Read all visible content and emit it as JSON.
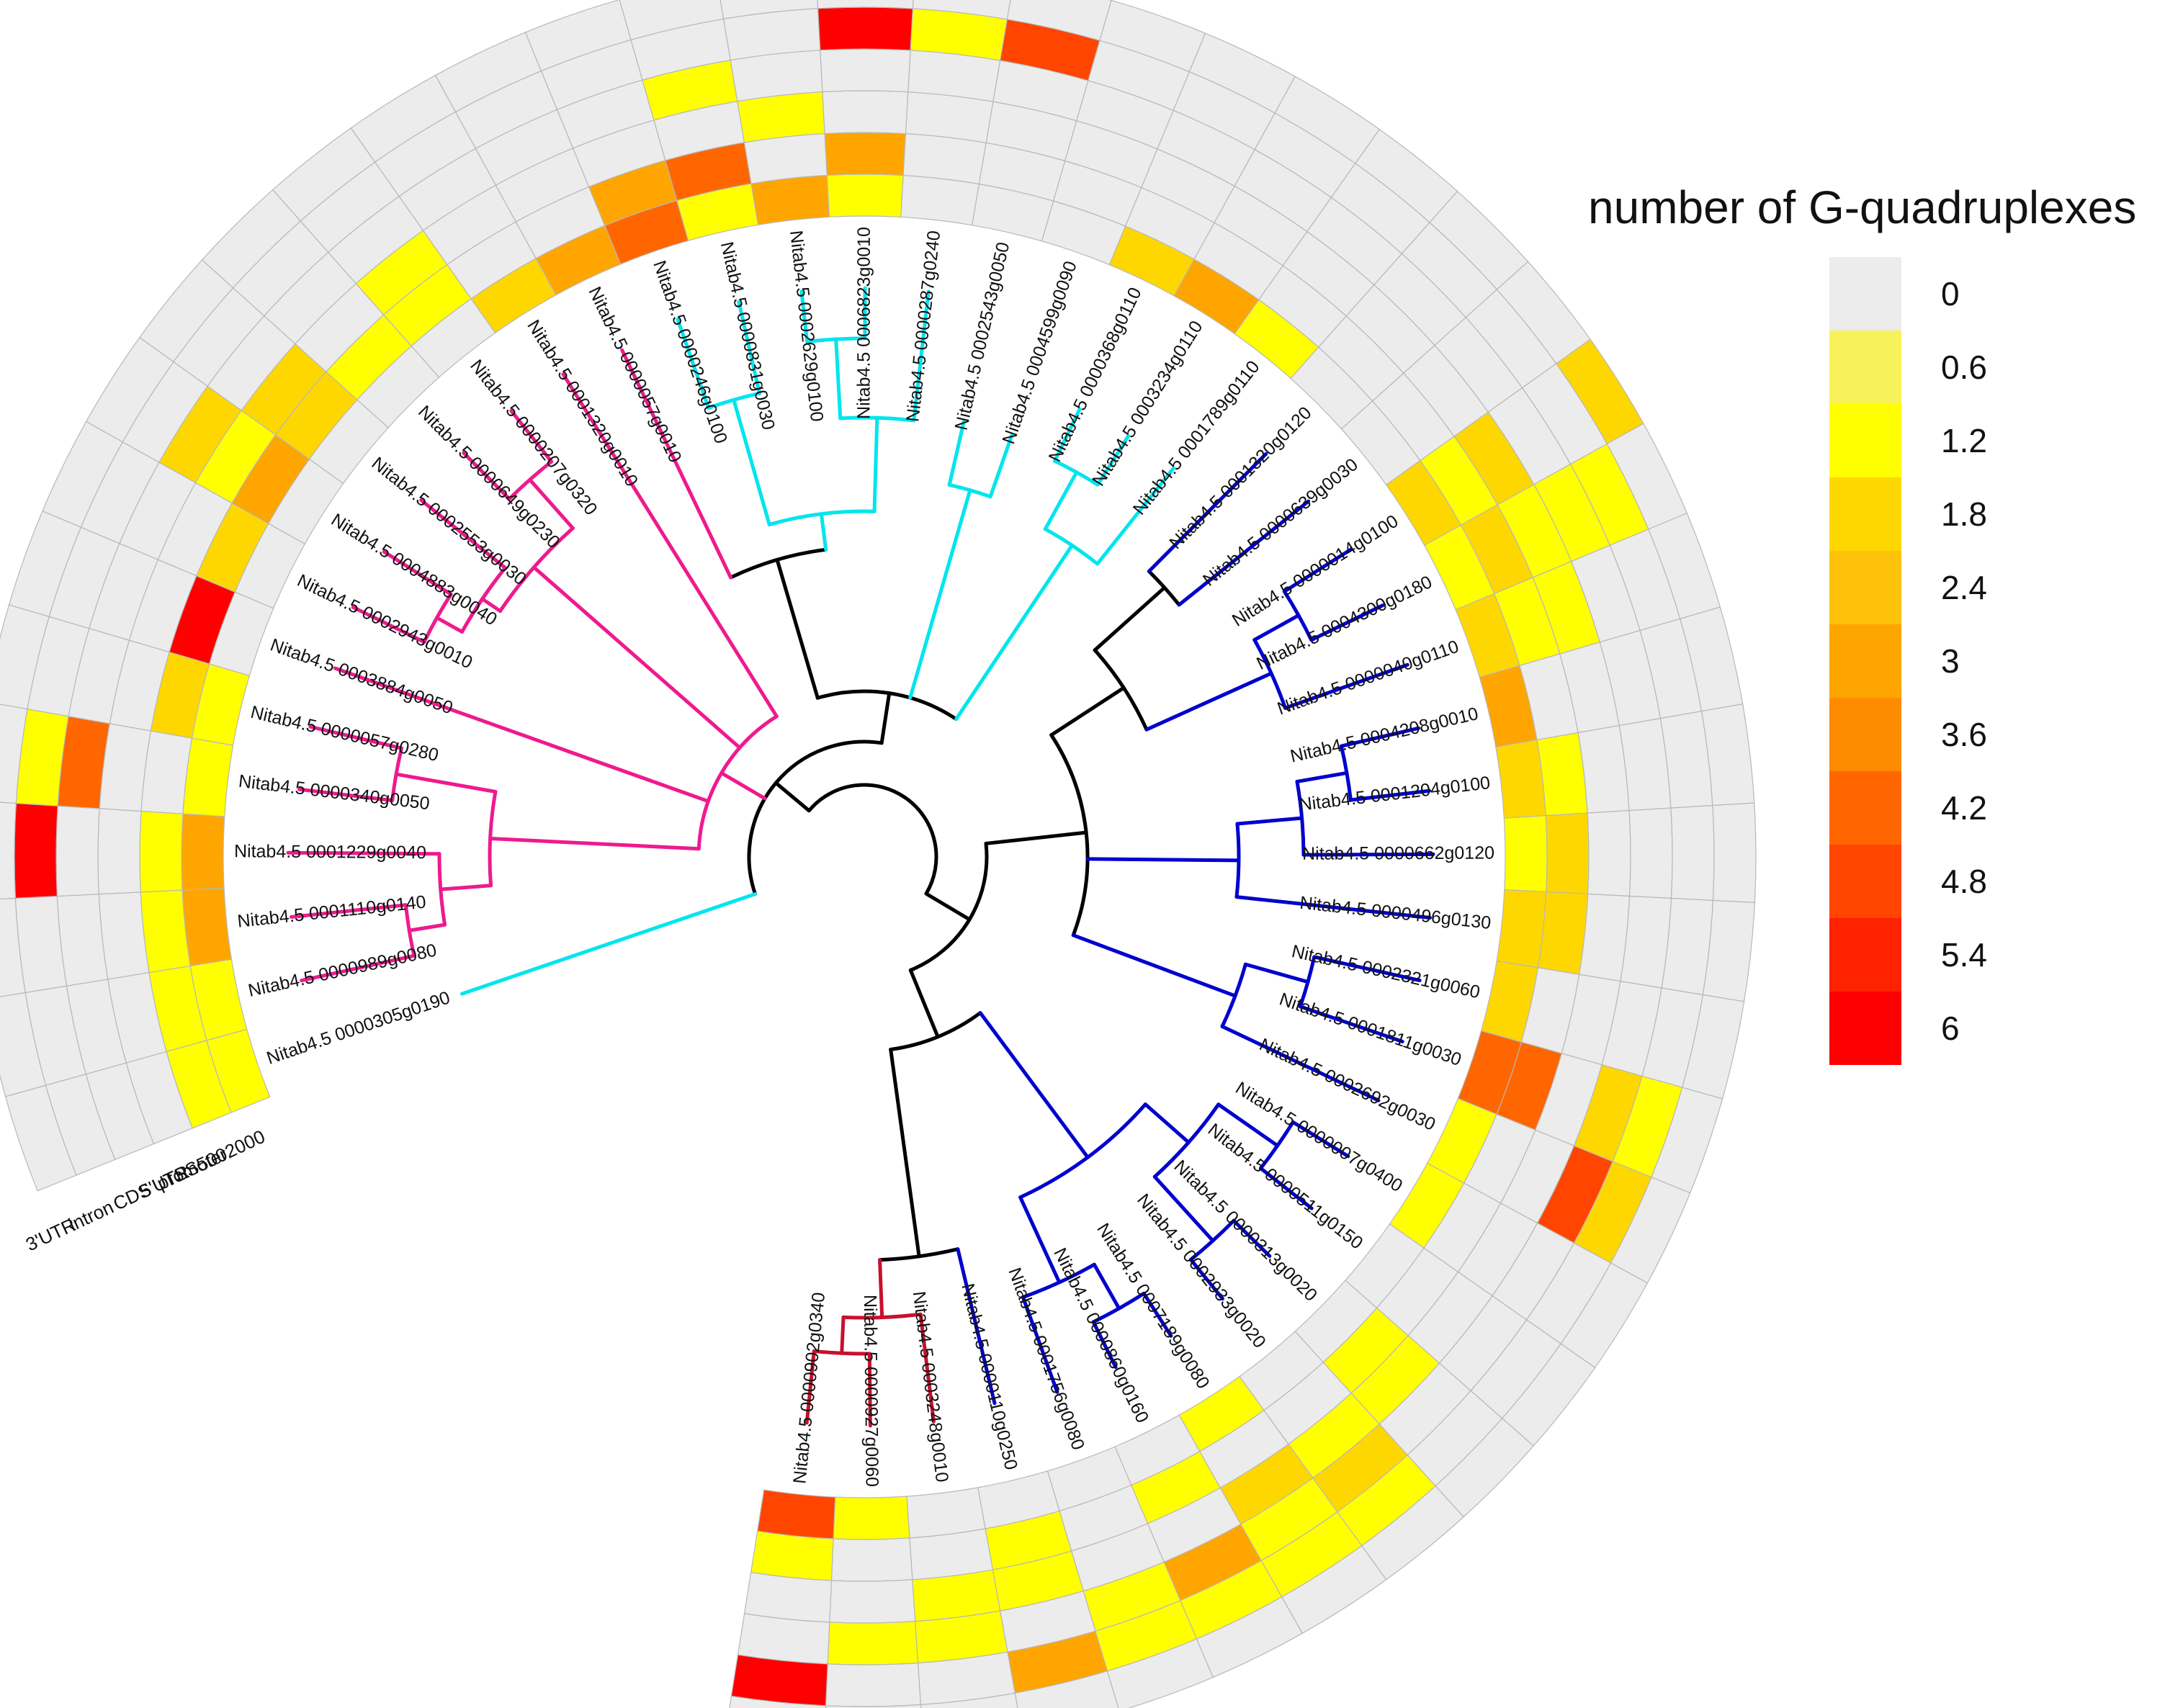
{
  "chart_data": {
    "type": "heatmap",
    "subtype": "circular phylogenetic tree with ring heatmap",
    "legend": {
      "title": "number of G-quadruplexes",
      "ticks": [
        "0",
        "0.6",
        "1.2",
        "1.8",
        "2.4",
        "3",
        "3.6",
        "4.2",
        "4.8",
        "5.4",
        "6"
      ],
      "colors": [
        "#ececec",
        "#f7f25a",
        "#ffff00",
        "#ffd700",
        "#ffc20a",
        "#ffa500",
        "#ff8c00",
        "#ff6600",
        "#ff4500",
        "#ff2200",
        "#ff0000"
      ],
      "range": [
        0,
        6
      ]
    },
    "tracks": [
      "3'UTR",
      "intron",
      "CDS",
      "5'UTR",
      "TSS500",
      "promoter2000"
    ],
    "clade_colors": {
      "cyan": "#00e5ee",
      "magenta": "#ee1a8e",
      "crimson": "#c8102e",
      "blue": "#0000cd",
      "black": "#000000"
    },
    "leaves": [
      {
        "id": "Nitab4.5 0000305g0190",
        "clade": "cyan",
        "values": [
          0,
          0,
          0,
          0,
          1,
          1
        ]
      },
      {
        "id": "Nitab4.5 0000989g0080",
        "clade": "magenta",
        "values": [
          0,
          0,
          0,
          0,
          1,
          1
        ]
      },
      {
        "id": "Nitab4.5 0001110g0140",
        "clade": "magenta",
        "values": [
          0,
          0,
          0,
          0,
          1,
          3
        ]
      },
      {
        "id": "Nitab4.5 0001229g0040",
        "clade": "magenta",
        "values": [
          0,
          6,
          0,
          0,
          1,
          3
        ]
      },
      {
        "id": "Nitab4.5 0000340g0050",
        "clade": "magenta",
        "values": [
          0,
          1,
          4,
          0,
          0,
          1
        ]
      },
      {
        "id": "Nitab4.5 0000057g0280",
        "clade": "magenta",
        "values": [
          0,
          0,
          0,
          0,
          2,
          1
        ]
      },
      {
        "id": "Nitab4.5 0003884g0050",
        "clade": "magenta",
        "values": [
          0,
          0,
          0,
          0,
          6,
          0
        ]
      },
      {
        "id": "Nitab4.5 0002943g0010",
        "clade": "magenta",
        "values": [
          0,
          0,
          0,
          0,
          2,
          0
        ]
      },
      {
        "id": "Nitab4.5 0004883g0040",
        "clade": "magenta",
        "values": [
          0,
          0,
          2,
          1,
          3,
          0
        ]
      },
      {
        "id": "Nitab4.5 0002553g0030",
        "clade": "magenta",
        "values": [
          0,
          0,
          0,
          2,
          2,
          0
        ]
      },
      {
        "id": "Nitab4.5 0000649g0230",
        "clade": "magenta",
        "values": [
          0,
          0,
          0,
          0,
          1,
          0
        ]
      },
      {
        "id": "Nitab4.5 0000207g0320",
        "clade": "magenta",
        "values": [
          0,
          0,
          0,
          1,
          1,
          0
        ]
      },
      {
        "id": "Nitab4.5 0001320g0010",
        "clade": "magenta",
        "values": [
          0,
          0,
          0,
          0,
          0,
          2
        ]
      },
      {
        "id": "Nitab4.5 0000057g0010",
        "clade": "magenta",
        "values": [
          0,
          0,
          0,
          0,
          0,
          3
        ]
      },
      {
        "id": "Nitab4.5 0000246g0100",
        "clade": "cyan",
        "values": [
          0,
          0,
          0,
          0,
          3,
          4
        ]
      },
      {
        "id": "Nitab4.5 0000831g0030",
        "clade": "cyan",
        "values": [
          0,
          0,
          1,
          0,
          4,
          1
        ]
      },
      {
        "id": "Nitab4.5 0002629g0100",
        "clade": "cyan",
        "values": [
          0,
          0,
          0,
          1,
          0,
          3
        ]
      },
      {
        "id": "Nitab4.5 0006823g0010",
        "clade": "cyan",
        "values": [
          0,
          6,
          0,
          0,
          3,
          1
        ]
      },
      {
        "id": "Nitab4.5 0000287g0240",
        "clade": "cyan",
        "values": [
          0,
          1,
          0,
          0,
          0,
          0
        ]
      },
      {
        "id": "Nitab4.5 0002543g0050",
        "clade": "cyan",
        "values": [
          0,
          5,
          0,
          0,
          0,
          0
        ]
      },
      {
        "id": "Nitab4.5 0004599g0090",
        "clade": "cyan",
        "values": [
          0,
          0,
          0,
          0,
          0,
          0
        ]
      },
      {
        "id": "Nitab4.5 0000368g0110",
        "clade": "cyan",
        "values": [
          0,
          0,
          0,
          0,
          0,
          2
        ]
      },
      {
        "id": "Nitab4.5 0003234g0110",
        "clade": "cyan",
        "values": [
          0,
          0,
          0,
          0,
          0,
          3
        ]
      },
      {
        "id": "Nitab4.5 0001789g0110",
        "clade": "cyan",
        "values": [
          0,
          0,
          0,
          0,
          0,
          1
        ]
      },
      {
        "id": "Nitab4.5 0001320g0120",
        "clade": "blue",
        "values": [
          0,
          0,
          0,
          0,
          0,
          0
        ]
      },
      {
        "id": "Nitab4.5 0000639g0030",
        "clade": "blue",
        "values": [
          0,
          0,
          0,
          0,
          0,
          0
        ]
      },
      {
        "id": "Nitab4.5 0000014g0100",
        "clade": "blue",
        "values": [
          2,
          0,
          0,
          2,
          1,
          2
        ]
      },
      {
        "id": "Nitab4.5 0004300g0180",
        "clade": "blue",
        "values": [
          0,
          1,
          1,
          1,
          2,
          1
        ]
      },
      {
        "id": "Nitab4.5 0000040g0110",
        "clade": "blue",
        "values": [
          0,
          0,
          0,
          1,
          1,
          2
        ]
      },
      {
        "id": "Nitab4.5 0004208g0010",
        "clade": "blue",
        "values": [
          0,
          0,
          0,
          0,
          0,
          3
        ]
      },
      {
        "id": "Nitab4.5 0001204g0100",
        "clade": "blue",
        "values": [
          0,
          0,
          0,
          0,
          1,
          2
        ]
      },
      {
        "id": "Nitab4.5 0000662g0120",
        "clade": "blue",
        "values": [
          0,
          0,
          0,
          0,
          2,
          1
        ]
      },
      {
        "id": "Nitab4.5 0000496g0130",
        "clade": "blue",
        "values": [
          0,
          0,
          0,
          0,
          2,
          2
        ]
      },
      {
        "id": "Nitab4.5 0002321g0060",
        "clade": "blue",
        "values": [
          0,
          0,
          0,
          0,
          0,
          2
        ]
      },
      {
        "id": "Nitab4.5 0001811g0030",
        "clade": "blue",
        "values": [
          0,
          1,
          2,
          0,
          4,
          4
        ]
      },
      {
        "id": "Nitab4.5 0002692g0030",
        "clade": "blue",
        "values": [
          0,
          2,
          5,
          0,
          0,
          1
        ]
      },
      {
        "id": "Nitab4.5 0000007g0400",
        "clade": "blue",
        "values": [
          0,
          0,
          0,
          0,
          0,
          1
        ]
      },
      {
        "id": "Nitab4.5 0000511g0150",
        "clade": "blue",
        "values": [
          0,
          0,
          0,
          0,
          0,
          0
        ]
      },
      {
        "id": "Nitab4.5 0000313g0020",
        "clade": "blue",
        "values": [
          0,
          0,
          0,
          1,
          1,
          0
        ]
      },
      {
        "id": "Nitab4.5 0002933g0020",
        "clade": "blue",
        "values": [
          0,
          1,
          2,
          1,
          0,
          0
        ]
      },
      {
        "id": "Nitab4.5 0007189g0080",
        "clade": "blue",
        "values": [
          0,
          1,
          1,
          2,
          0,
          1
        ]
      },
      {
        "id": "Nitab4.5 0000860g0160",
        "clade": "blue",
        "values": [
          0,
          1,
          3,
          0,
          1,
          0
        ]
      },
      {
        "id": "Nitab4.5 0001756g0080",
        "clade": "blue",
        "values": [
          0,
          1,
          1,
          0,
          0,
          0
        ]
      },
      {
        "id": "Nitab4.5 0000110g0250",
        "clade": "blue",
        "values": [
          0,
          3,
          0,
          1,
          1,
          0
        ]
      },
      {
        "id": "Nitab4.5 0003248g0010",
        "clade": "crimson",
        "values": [
          0,
          0,
          1,
          1,
          0,
          0
        ]
      },
      {
        "id": "Nitab4.5 0000927g0060",
        "clade": "crimson",
        "values": [
          0,
          0,
          1,
          0,
          0,
          1
        ]
      },
      {
        "id": "Nitab4.5 0000902g0340",
        "clade": "crimson",
        "values": [
          0,
          6,
          0,
          0,
          1,
          5
        ]
      }
    ]
  }
}
